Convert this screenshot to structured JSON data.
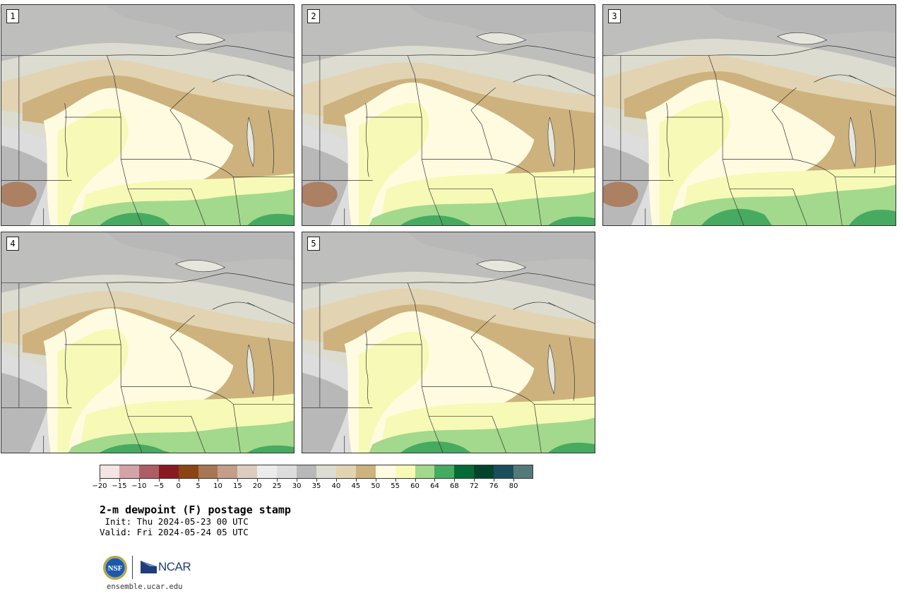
{
  "panels": [
    {
      "label": "1"
    },
    {
      "label": "2"
    },
    {
      "label": "3"
    },
    {
      "label": "4"
    },
    {
      "label": "5"
    }
  ],
  "colorbar": {
    "colors": [
      "#f4e4e4",
      "#d4a3a6",
      "#ad5d64",
      "#8a1a22",
      "#8b4513",
      "#a87653",
      "#c39e8a",
      "#decdbf",
      "#ececec",
      "#dddddd",
      "#b8b8b8",
      "#dcdcd0",
      "#e2d4b2",
      "#cdb27e",
      "#fffbe0",
      "#f6fab6",
      "#a3d98c",
      "#47aa61",
      "#066a36",
      "#03452a",
      "#1b4e5c",
      "#537a7a"
    ],
    "ticks": [
      "−20",
      "−15",
      "−10",
      "−5",
      "0",
      "5",
      "10",
      "15",
      "20",
      "25",
      "30",
      "35",
      "40",
      "45",
      "50",
      "55",
      "60",
      "64",
      "68",
      "72",
      "76",
      "80"
    ]
  },
  "title": "2-m dewpoint (F) postage stamp",
  "init": " Init: Thu 2024-05-23 00 UTC",
  "valid": "Valid: Fri 2024-05-24 05 UTC",
  "logos": {
    "nsf": "NSF",
    "ncar": "NCAR"
  },
  "site": "ensemble.ucar.edu"
}
